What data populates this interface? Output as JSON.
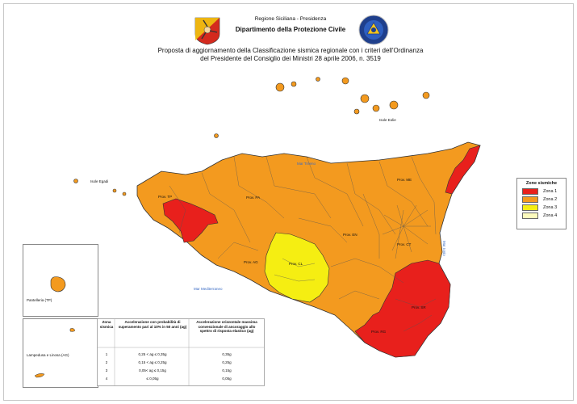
{
  "header": {
    "region": "Regione Siciliana - Presidenza",
    "department": "Dipartimento della Protezione Civile",
    "title_line1": "Proposta di aggiornamento della Classificazione sismica regionale con i criteri dell'Ordinanza",
    "title_line2": "del Presidente del Consiglio dei Ministri 28 aprile 2006, n. 3519"
  },
  "map": {
    "seas": [
      "Mar Tirreno",
      "Mar Mediterraneo",
      "Mar Ionio"
    ],
    "islands": [
      "Isole Eolie",
      "Isole Egadi",
      "Pantelleria (TP)",
      "Lampedusa e Linosa (AG)"
    ],
    "provinces": [
      "Prov. TP",
      "Prov. PA",
      "Prov. ME",
      "Prov. AG",
      "Prov. CL",
      "Prov. EN",
      "Prov. CT",
      "Prov. SR",
      "Prov. RG"
    ]
  },
  "legend": {
    "title": "Zone sismiche",
    "items": [
      {
        "label": "Zona 1",
        "color": "#e8201c"
      },
      {
        "label": "Zona 2",
        "color": "#f39a1f"
      },
      {
        "label": "Zona 3",
        "color": "#f5ee12"
      },
      {
        "label": "Zona 4",
        "color": "#fdfbbd"
      }
    ]
  },
  "table": {
    "headers": [
      "Zona sismica",
      "Accelerazione con probabilità di superamento pari al 10% in 50 anni (ag)",
      "Accelerazione orizzontale massima convenzionale di ancoraggio allo spettro di risposta elastico (ag)"
    ],
    "rows": [
      [
        "1",
        "0,25 < ag ≤ 0,35g",
        "0,35g"
      ],
      [
        "2",
        "0,15 < ag ≤ 0,25g",
        "0,25g"
      ],
      [
        "3",
        "0,05< ag ≤ 0,15g",
        "0,15g"
      ],
      [
        "4",
        "≤ 0,05g",
        "0,05g"
      ]
    ]
  }
}
